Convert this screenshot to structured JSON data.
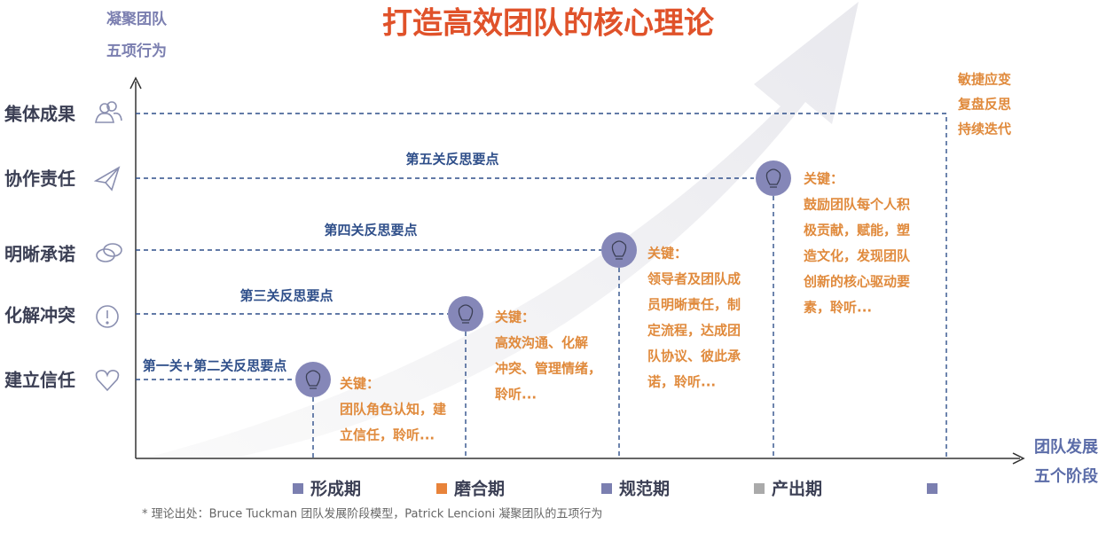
{
  "title": "打造高效团队的核心理论",
  "y_axis_label": [
    "凝聚团队",
    "五项行为"
  ],
  "x_axis_label": [
    "团队发展",
    "五个阶段"
  ],
  "behaviors": [
    "集体成果",
    "协作责任",
    "明晰承诺",
    "化解冲突",
    "建立信任"
  ],
  "reflections": [
    "第一关+第二关反思要点",
    "第三关反思要点",
    "第四关反思要点",
    "第五关反思要点"
  ],
  "stages": [
    {
      "key": "关键：",
      "lines": [
        "团队角色认知，建",
        "立信任，聆听..."
      ]
    },
    {
      "key": "关键：",
      "lines": [
        "高效沟通、化解",
        "冲突、管理情绪，",
        "聆听..."
      ]
    },
    {
      "key": "关键：",
      "lines": [
        "领导者及团队成",
        "员明晰责任，制",
        "定流程，达成团",
        "队协议、彼此承",
        "诺，聆听..."
      ]
    },
    {
      "key": "关键：",
      "lines": [
        "鼓励团队每个人积",
        "极贡献，赋能，塑",
        "造文化，发现团队",
        "创新的核心驱动要",
        "素，聆听..."
      ]
    }
  ],
  "final_notes": [
    "敏捷应变",
    "复盘反思",
    "持续迭代"
  ],
  "legend": [
    "形成期",
    "磨合期",
    "规范期",
    "产出期"
  ],
  "footnote": "* 理论出处：Bruce Tuckman 团队发展阶段模型，Patrick Lencioni  凝聚团队的五项行为"
}
